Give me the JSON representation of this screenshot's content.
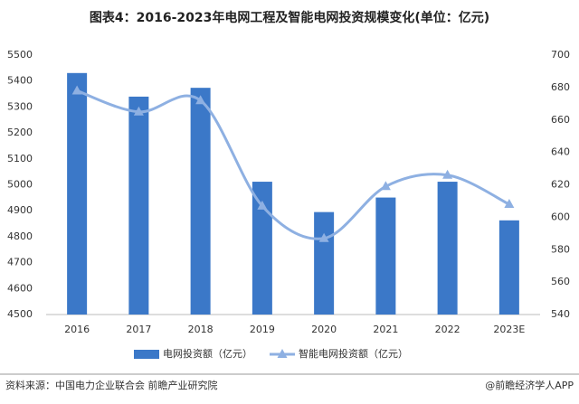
{
  "chart_data": {
    "type": "bar",
    "title": "图表4：2016-2023年电网工程及智能电网投资规模变化(单位：亿元)",
    "categories": [
      "2016",
      "2017",
      "2018",
      "2019",
      "2020",
      "2021",
      "2022",
      "2023E"
    ],
    "series": [
      {
        "name": "电网投资额（亿元）",
        "type": "bar",
        "color": "#3b78c8",
        "values": [
          5431,
          5340,
          5374,
          5012,
          4895,
          4951,
          5012,
          4863
        ]
      },
      {
        "name": "智能电网投资额（亿元）",
        "type": "line",
        "axis": "y2",
        "color": "#8eb0e2",
        "values": [
          678,
          665,
          672,
          607,
          587,
          619,
          626,
          608
        ]
      }
    ],
    "ylim": [
      4500,
      5500
    ],
    "yticks": [
      4500,
      4600,
      4700,
      4800,
      4900,
      5000,
      5100,
      5200,
      5300,
      5400,
      5500
    ],
    "y2lim": [
      540,
      700
    ],
    "y2ticks": [
      540,
      560,
      580,
      600,
      620,
      640,
      660,
      680,
      700
    ]
  },
  "footer": {
    "source": "资料来源：中国电力企业联合会 前瞻产业研究院",
    "credit": "@前瞻经济学人APP"
  }
}
